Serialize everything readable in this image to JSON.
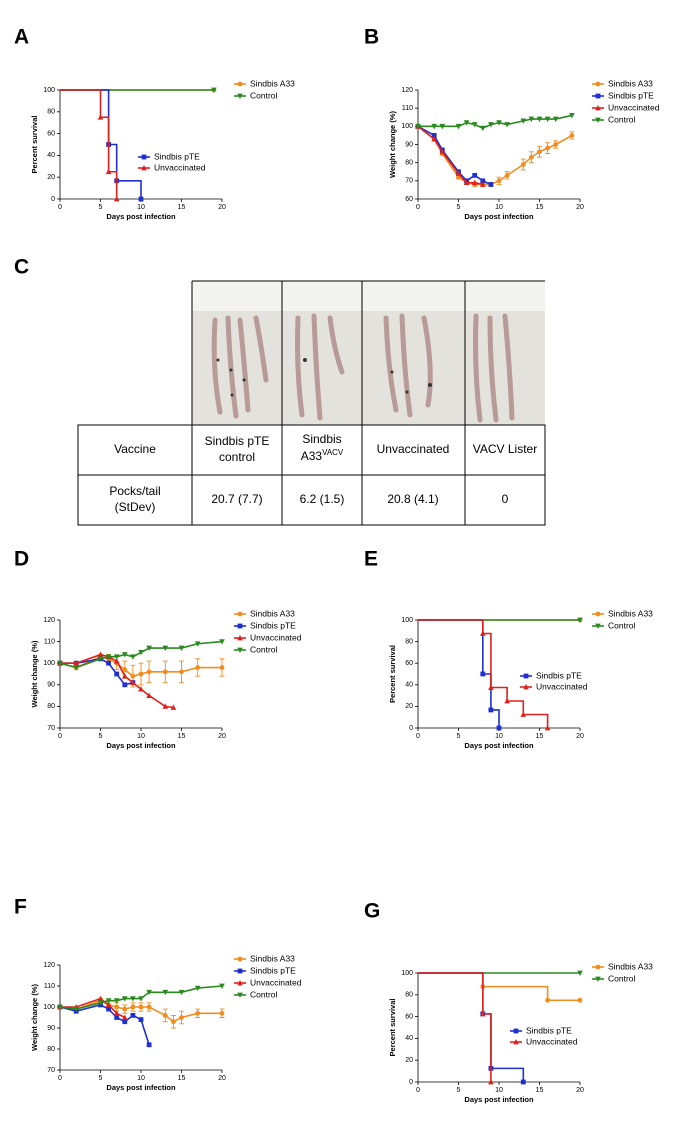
{
  "chart_data": [
    {
      "type": "survival",
      "panel": "A",
      "xlabel": "Days post infection",
      "ylabel": "Percent survival",
      "xlim": [
        0,
        20
      ],
      "xticks": [
        0,
        5,
        10,
        15,
        20
      ],
      "ylim": [
        0,
        100
      ],
      "yticks": [
        0,
        20,
        40,
        60,
        80,
        100
      ],
      "series": [
        {
          "name": "Sindbis A33",
          "color": "#f28c1e",
          "marker": "circle",
          "x": [
            0,
            19
          ],
          "values": [
            100,
            100
          ]
        },
        {
          "name": "Control",
          "color": "#2a8a1f",
          "marker": "triangle-down",
          "x": [
            0,
            19
          ],
          "values": [
            100,
            100
          ]
        },
        {
          "name": "Sindbis pTE",
          "color": "#1f2fd0",
          "marker": "square",
          "x": [
            0,
            6,
            7,
            10
          ],
          "values": [
            100,
            50,
            16.7,
            0
          ]
        },
        {
          "name": "Unvaccinated",
          "color": "#e0201c",
          "marker": "triangle-up",
          "x": [
            0,
            5,
            6,
            7
          ],
          "values": [
            100,
            75,
            25,
            0
          ]
        }
      ]
    },
    {
      "type": "line",
      "panel": "B",
      "xlabel": "Days post infection",
      "ylabel": "Weight change (%)",
      "xlim": [
        0,
        20
      ],
      "xticks": [
        0,
        5,
        10,
        15,
        20
      ],
      "ylim": [
        60,
        120
      ],
      "yticks": [
        60,
        70,
        80,
        90,
        100,
        110,
        120
      ],
      "series": [
        {
          "name": "Sindbis A33",
          "color": "#f28c1e",
          "marker": "circle",
          "x": [
            0,
            2,
            3,
            5,
            6,
            7,
            8,
            9,
            10,
            11,
            13,
            14,
            15,
            16,
            17,
            19
          ],
          "values": [
            100,
            93,
            85,
            72,
            69,
            68,
            68,
            68,
            70,
            73,
            79,
            83,
            86,
            88,
            90,
            95
          ],
          "errors": [
            1,
            1,
            1,
            1,
            1,
            1,
            1,
            1,
            2,
            2,
            3,
            3,
            3,
            3,
            2,
            2
          ]
        },
        {
          "name": "Sindbis pTE",
          "color": "#1f2fd0",
          "marker": "square",
          "x": [
            0,
            2,
            3,
            5,
            6,
            7,
            8,
            9
          ],
          "values": [
            100,
            95,
            87,
            75,
            70,
            73,
            70,
            68
          ]
        },
        {
          "name": "Unvaccinated",
          "color": "#e0201c",
          "marker": "triangle-up",
          "x": [
            0,
            2,
            3,
            5,
            6,
            7,
            8
          ],
          "values": [
            100,
            93,
            86,
            74,
            69,
            69,
            68
          ]
        },
        {
          "name": "Control",
          "color": "#2a8a1f",
          "marker": "triangle-down",
          "x": [
            0,
            2,
            3,
            5,
            6,
            7,
            8,
            9,
            10,
            11,
            13,
            14,
            15,
            16,
            17,
            19
          ],
          "values": [
            100,
            100,
            100,
            100,
            102,
            101,
            99,
            101,
            102,
            101,
            103,
            104,
            104,
            104,
            104,
            106
          ]
        }
      ]
    },
    {
      "type": "line",
      "panel": "D",
      "xlabel": "Days post infection",
      "ylabel": "Weight change (%)",
      "xlim": [
        0,
        20
      ],
      "xticks": [
        0,
        5,
        10,
        15,
        20
      ],
      "ylim": [
        70,
        120
      ],
      "yticks": [
        70,
        80,
        90,
        100,
        110,
        120
      ],
      "series": [
        {
          "name": "Sindbis A33",
          "color": "#f28c1e",
          "marker": "circle",
          "x": [
            0,
            2,
            5,
            6,
            7,
            8,
            9,
            10,
            11,
            13,
            15,
            17,
            20
          ],
          "values": [
            100,
            98,
            103,
            102,
            100,
            97,
            94,
            95,
            96,
            96,
            96,
            98,
            98
          ],
          "errors": [
            1,
            1,
            1,
            2,
            3,
            4,
            5,
            5,
            5,
            5,
            5,
            4,
            4
          ]
        },
        {
          "name": "Sindbis pTE",
          "color": "#1f2fd0",
          "marker": "square",
          "x": [
            0,
            2,
            5,
            6,
            7,
            8,
            9
          ],
          "values": [
            100,
            100,
            102,
            100,
            95,
            90,
            91
          ]
        },
        {
          "name": "Unvaccinated",
          "color": "#e0201c",
          "marker": "triangle-up",
          "x": [
            0,
            2,
            5,
            6,
            7,
            8,
            9,
            10,
            11,
            13,
            14
          ],
          "values": [
            100,
            100,
            104,
            103,
            101,
            94,
            91,
            88,
            85,
            80,
            79.5
          ]
        },
        {
          "name": "Control",
          "color": "#2a8a1f",
          "marker": "triangle-down",
          "x": [
            0,
            2,
            5,
            6,
            7,
            8,
            9,
            10,
            11,
            13,
            15,
            17,
            20
          ],
          "values": [
            100,
            98,
            102,
            103,
            103,
            104,
            103,
            105,
            107,
            107,
            107,
            109,
            110
          ]
        }
      ]
    },
    {
      "type": "survival",
      "panel": "E",
      "xlabel": "Days post infection",
      "ylabel": "Percent survival",
      "xlim": [
        0,
        20
      ],
      "xticks": [
        0,
        5,
        10,
        15,
        20
      ],
      "ylim": [
        0,
        100
      ],
      "yticks": [
        0,
        20,
        40,
        60,
        80,
        100
      ],
      "series": [
        {
          "name": "Sindbis A33",
          "color": "#f28c1e",
          "marker": "circle",
          "x": [
            0,
            20
          ],
          "values": [
            100,
            100
          ]
        },
        {
          "name": "Control",
          "color": "#2a8a1f",
          "marker": "triangle-down",
          "x": [
            0,
            20
          ],
          "values": [
            100,
            100
          ]
        },
        {
          "name": "Sindbis pTE",
          "color": "#1f2fd0",
          "marker": "square",
          "x": [
            0,
            8,
            9,
            10
          ],
          "values": [
            100,
            50,
            16.7,
            0
          ]
        },
        {
          "name": "Unvaccinated",
          "color": "#e0201c",
          "marker": "triangle-up",
          "x": [
            0,
            8,
            9,
            11,
            13,
            16
          ],
          "values": [
            100,
            87.5,
            37.5,
            25,
            12.5,
            0
          ]
        }
      ]
    },
    {
      "type": "line",
      "panel": "F",
      "xlabel": "Days post infection",
      "ylabel": "Weight change (%)",
      "xlim": [
        0,
        20
      ],
      "xticks": [
        0,
        5,
        10,
        15,
        20
      ],
      "ylim": [
        70,
        120
      ],
      "yticks": [
        70,
        80,
        90,
        100,
        110,
        120
      ],
      "series": [
        {
          "name": "Sindbis A33",
          "color": "#f28c1e",
          "marker": "circle",
          "x": [
            0,
            2,
            5,
            6,
            7,
            8,
            9,
            10,
            11,
            13,
            14,
            15,
            17,
            20
          ],
          "values": [
            100,
            99,
            103,
            101,
            100,
            99,
            100,
            100,
            100,
            96,
            93,
            95,
            97,
            97
          ],
          "errors": [
            1,
            1,
            1,
            2,
            2,
            2,
            2,
            2,
            2,
            3,
            3,
            3,
            2,
            2
          ]
        },
        {
          "name": "Sindbis pTE",
          "color": "#1f2fd0",
          "marker": "square",
          "x": [
            0,
            2,
            5,
            6,
            7,
            8,
            9,
            10,
            11
          ],
          "values": [
            100,
            98,
            101,
            99,
            95,
            93,
            96,
            94,
            82
          ]
        },
        {
          "name": "Unvaccinated",
          "color": "#e0201c",
          "marker": "triangle-up",
          "x": [
            0,
            2,
            5,
            6,
            7,
            8
          ],
          "values": [
            100,
            100,
            104,
            101,
            97,
            95
          ]
        },
        {
          "name": "Control",
          "color": "#2a8a1f",
          "marker": "triangle-down",
          "x": [
            0,
            2,
            5,
            6,
            7,
            8,
            9,
            10,
            11,
            13,
            15,
            17,
            20
          ],
          "values": [
            100,
            99,
            102,
            103,
            103,
            104,
            104,
            104,
            107,
            107,
            107,
            109,
            110
          ]
        }
      ]
    },
    {
      "type": "survival",
      "panel": "G",
      "xlabel": "Days post infection",
      "ylabel": "Percent survival",
      "xlim": [
        0,
        20
      ],
      "xticks": [
        0,
        5,
        10,
        15,
        20
      ],
      "ylim": [
        0,
        100
      ],
      "yticks": [
        0,
        20,
        40,
        60,
        80,
        100
      ],
      "series": [
        {
          "name": "Sindbis A33",
          "color": "#f28c1e",
          "marker": "circle",
          "x": [
            0,
            8,
            16,
            20
          ],
          "values": [
            100,
            87.5,
            75,
            75
          ]
        },
        {
          "name": "Control",
          "color": "#2a8a1f",
          "marker": "triangle-down",
          "x": [
            0,
            20
          ],
          "values": [
            100,
            100
          ]
        },
        {
          "name": "Sindbis pTE",
          "color": "#1f2fd0",
          "marker": "square",
          "x": [
            0,
            8,
            9,
            13
          ],
          "values": [
            100,
            62.5,
            12.5,
            0
          ]
        },
        {
          "name": "Unvaccinated",
          "color": "#e0201c",
          "marker": "triangle-up",
          "x": [
            0,
            8,
            9
          ],
          "values": [
            100,
            62.5,
            0
          ]
        }
      ]
    }
  ],
  "panel_c": {
    "panel": "C",
    "header": [
      [
        "Vaccine"
      ],
      [
        "Sindbis pTE",
        "control"
      ],
      [
        "Sindbis",
        "A33",
        "VACV"
      ],
      [
        "Unvaccinated"
      ],
      [
        "VACV Lister"
      ]
    ],
    "row": [
      [
        "Pocks/tail",
        "(StDev)"
      ],
      [
        "20.7 (7.7)"
      ],
      [
        "6.2 (1.5)"
      ],
      [
        "20.8 (4.1)"
      ],
      [
        "0"
      ]
    ]
  }
}
